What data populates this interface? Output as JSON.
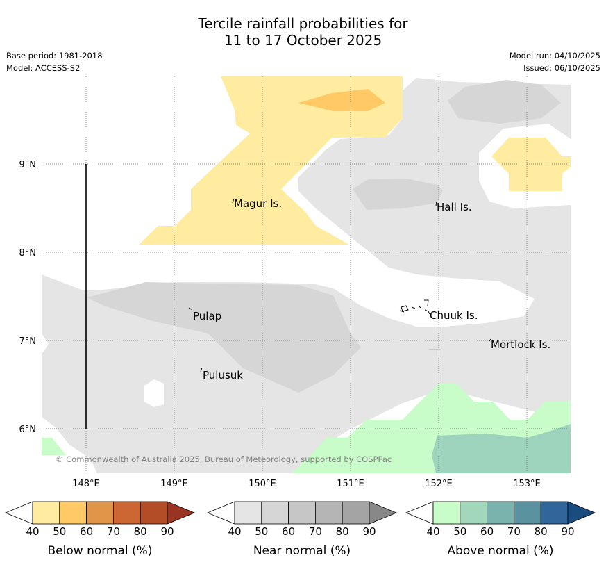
{
  "title": {
    "line1": "Tercile rainfall probabilities for",
    "line2": "11 to 17 October 2025"
  },
  "info": {
    "base_period": "Base period: 1981-2018",
    "model": "Model: ACCESS-S2",
    "model_run": "Model run: 04/10/2025",
    "issued": "Issued: 06/10/2025"
  },
  "map": {
    "lat_ticks": [
      "9°N",
      "8°N",
      "7°N",
      "6°N"
    ],
    "lon_ticks": [
      "148°E",
      "149°E",
      "150°E",
      "151°E",
      "152°E",
      "153°E"
    ],
    "places": [
      {
        "name": "Magur Is."
      },
      {
        "name": "Hall Is."
      },
      {
        "name": "Pulap"
      },
      {
        "name": "Chuuk Is."
      },
      {
        "name": "Mortlock Is."
      },
      {
        "name": "Pulusuk"
      }
    ],
    "copyright": "© Commonwealth of Australia 2025, Bureau of Meteorology, supported by COSPPac"
  },
  "colorbars": [
    {
      "label": "Below normal (%)",
      "ticks": [
        "40",
        "50",
        "60",
        "70",
        "80",
        "90"
      ],
      "colors": [
        "#ffeca0",
        "#ffc966",
        "#e09548",
        "#cc6633",
        "#b34d28",
        "#993322"
      ]
    },
    {
      "label": "Near normal (%)",
      "ticks": [
        "40",
        "50",
        "60",
        "70",
        "80",
        "90"
      ],
      "colors": [
        "#e5e5e5",
        "#d6d6d6",
        "#c6c6c6",
        "#b5b5b5",
        "#a4a4a4",
        "#888888"
      ]
    },
    {
      "label": "Above normal (%)",
      "ticks": [
        "40",
        "50",
        "60",
        "70",
        "80",
        "90"
      ],
      "colors": [
        "#c8fcc8",
        "#a3d7bb",
        "#7ab2ad",
        "#5a92a0",
        "#306699",
        "#1a4c80"
      ]
    }
  ]
}
